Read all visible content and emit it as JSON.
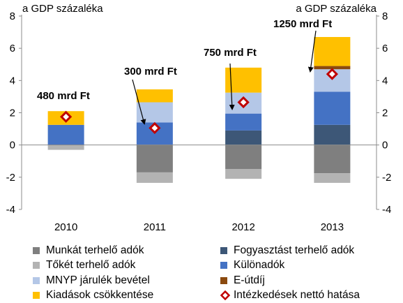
{
  "chart_data": {
    "type": "bar",
    "stacked": true,
    "categories": [
      "2010",
      "2011",
      "2012",
      "2013"
    ],
    "ylim": [
      -4,
      8
    ],
    "yticks": [
      -4,
      -2,
      0,
      2,
      4,
      6,
      8
    ],
    "ylabel_left": "a GDP százaléka",
    "ylabel_right": "a GDP százaléka",
    "series": [
      {
        "name": "Munkát terhelő adók",
        "color": "#7f7f7f",
        "values": [
          0,
          -1.7,
          -1.5,
          -1.75
        ]
      },
      {
        "name": "Tőkét terhelő adók",
        "color": "#b3b3b3",
        "values": [
          -0.3,
          -0.65,
          -0.6,
          -0.6
        ]
      },
      {
        "name": "Fogyasztást terhelő adók",
        "color": "#3d5777",
        "values": [
          0,
          0,
          0.9,
          1.25
        ]
      },
      {
        "name": "Különadók",
        "color": "#4472c4",
        "values": [
          1.25,
          1.4,
          1.05,
          2.05
        ]
      },
      {
        "name": "MNYP járulék bevétel",
        "color": "#b4c7e7",
        "values": [
          0,
          1.25,
          1.3,
          1.4
        ]
      },
      {
        "name": "E-útdíj",
        "color": "#8b4a0f",
        "values": [
          0,
          0,
          0,
          0.2
        ]
      },
      {
        "name": "Kiadások csökkentése",
        "color": "#ffc000",
        "values": [
          0.85,
          0.8,
          1.55,
          1.8
        ]
      }
    ],
    "net_effect": {
      "name": "Intézkedések nettó hatása",
      "color": "#c00000",
      "values": [
        1.75,
        1.05,
        2.65,
        4.4
      ]
    },
    "annotations": [
      {
        "category": "2010",
        "text": "480 mrd Ft"
      },
      {
        "category": "2011",
        "text": "300 mrd Ft"
      },
      {
        "category": "2012",
        "text": "750 mrd Ft"
      },
      {
        "category": "2013",
        "text": "1250 mrd Ft"
      }
    ],
    "legend": [
      {
        "name": "Munkát terhelő adók",
        "kind": "square",
        "color": "#7f7f7f"
      },
      {
        "name": "Fogyasztást terhelő adók",
        "kind": "square",
        "color": "#3d5777"
      },
      {
        "name": "Tőkét terhelő adók",
        "kind": "square",
        "color": "#b3b3b3"
      },
      {
        "name": "Különadók",
        "kind": "square",
        "color": "#4472c4"
      },
      {
        "name": "MNYP járulék bevétel",
        "kind": "square",
        "color": "#b4c7e7"
      },
      {
        "name": "E-útdíj",
        "kind": "square",
        "color": "#8b4a0f"
      },
      {
        "name": "Kiadások csökkentése",
        "kind": "square",
        "color": "#ffc000"
      },
      {
        "name": "Intézkedések nettó hatása",
        "kind": "diamond",
        "color": "#c00000"
      }
    ],
    "legend_position": "bottom"
  }
}
